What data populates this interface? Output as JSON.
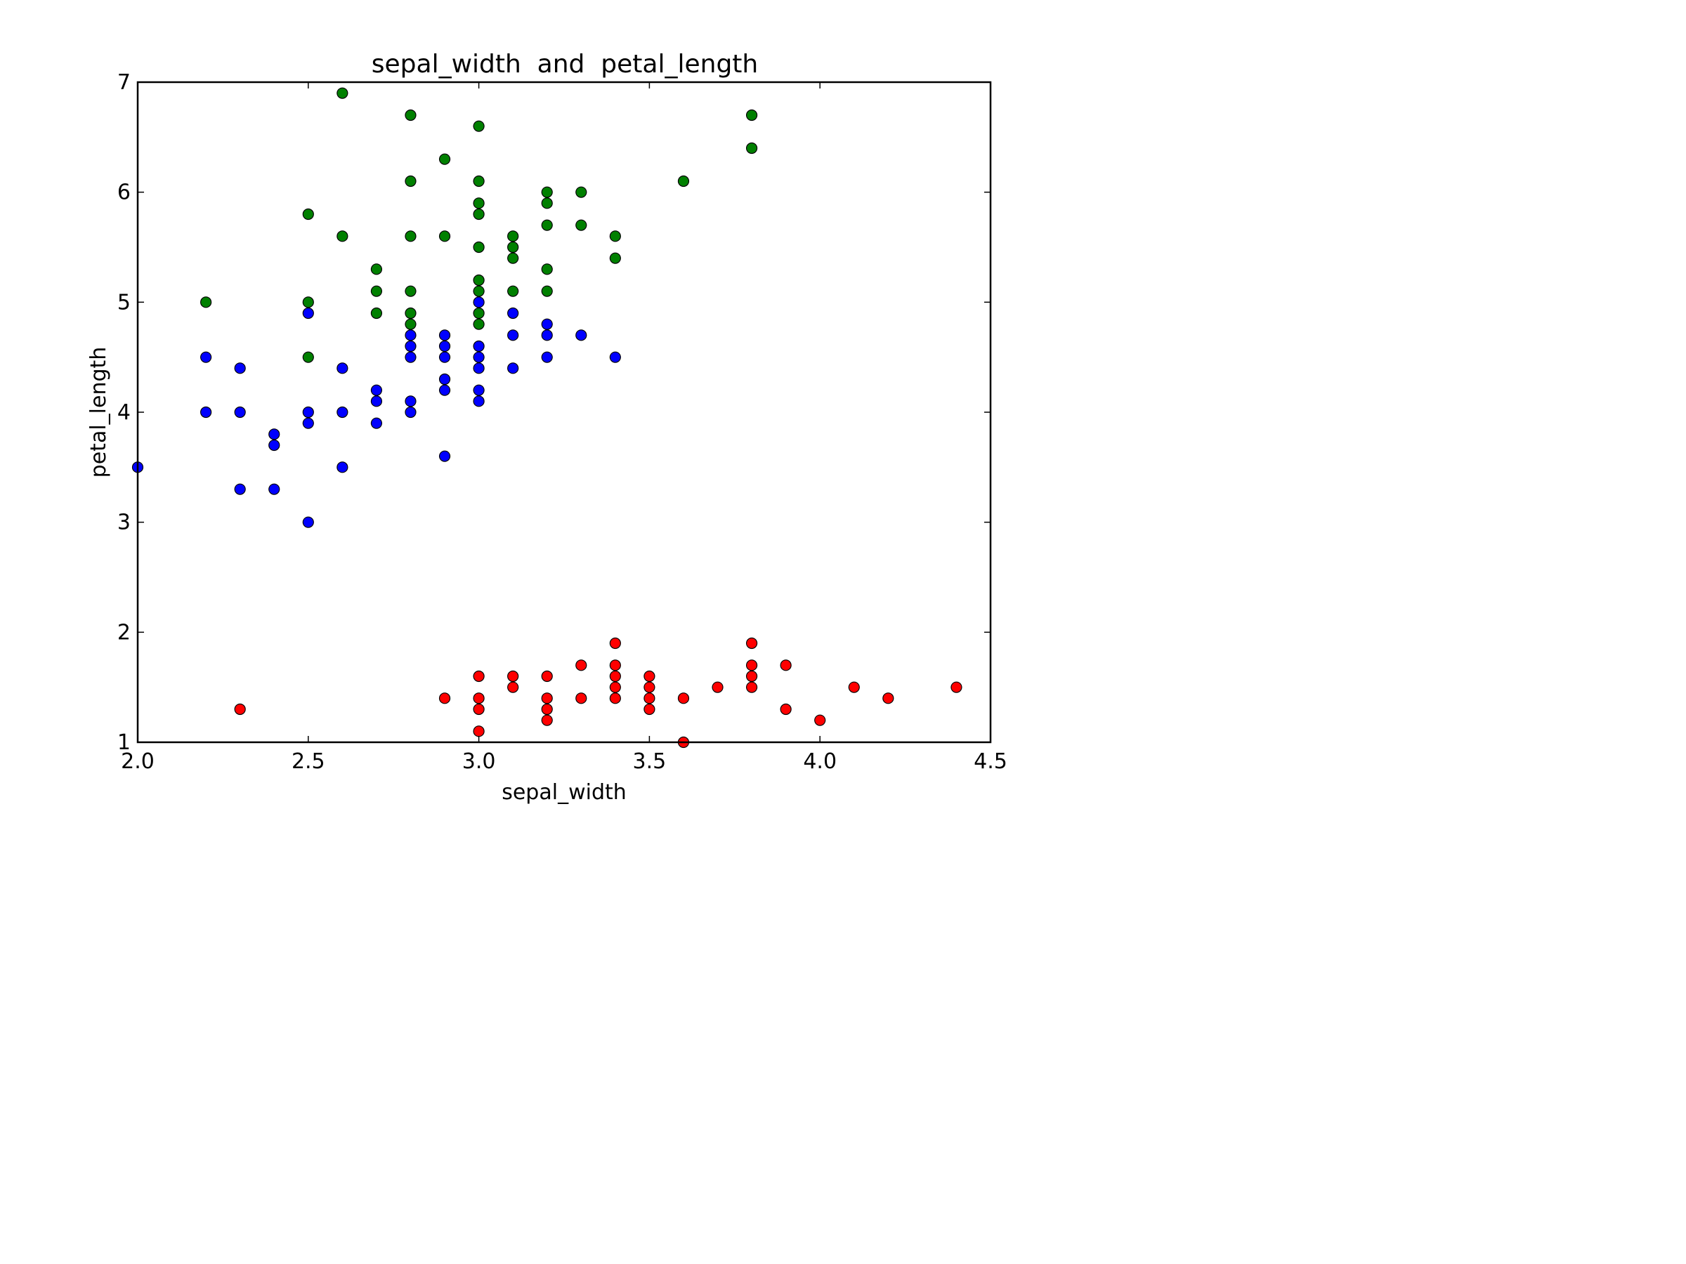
{
  "chart_data": {
    "type": "scatter",
    "title": "sepal_width  and  petal_length",
    "xlabel": "sepal_width",
    "ylabel": "petal_length",
    "xlim": [
      2.0,
      4.5
    ],
    "ylim": [
      1,
      7
    ],
    "xticks": [
      "2.0",
      "2.5",
      "3.0",
      "3.5",
      "4.0",
      "4.5"
    ],
    "yticks": [
      "1",
      "2",
      "3",
      "4",
      "5",
      "6",
      "7"
    ],
    "grid": false,
    "legend": "none",
    "series": [
      {
        "color": "#ff0000",
        "points": [
          [
            2.3,
            1.3
          ],
          [
            2.9,
            1.4
          ],
          [
            3.0,
            1.6
          ],
          [
            3.0,
            1.4
          ],
          [
            3.0,
            1.3
          ],
          [
            3.0,
            1.1
          ],
          [
            3.1,
            1.6
          ],
          [
            3.1,
            1.5
          ],
          [
            3.2,
            1.6
          ],
          [
            3.2,
            1.4
          ],
          [
            3.2,
            1.3
          ],
          [
            3.2,
            1.2
          ],
          [
            3.3,
            1.7
          ],
          [
            3.3,
            1.4
          ],
          [
            3.4,
            1.9
          ],
          [
            3.4,
            1.7
          ],
          [
            3.4,
            1.6
          ],
          [
            3.4,
            1.5
          ],
          [
            3.4,
            1.4
          ],
          [
            3.5,
            1.6
          ],
          [
            3.5,
            1.5
          ],
          [
            3.5,
            1.4
          ],
          [
            3.5,
            1.3
          ],
          [
            3.6,
            1.4
          ],
          [
            3.6,
            1.0
          ],
          [
            3.7,
            1.5
          ],
          [
            3.8,
            1.9
          ],
          [
            3.8,
            1.7
          ],
          [
            3.8,
            1.6
          ],
          [
            3.8,
            1.5
          ],
          [
            3.9,
            1.7
          ],
          [
            3.9,
            1.3
          ],
          [
            4.0,
            1.2
          ],
          [
            4.1,
            1.5
          ],
          [
            4.2,
            1.4
          ],
          [
            4.4,
            1.5
          ]
        ]
      },
      {
        "color": "#0000ff",
        "points": [
          [
            2.0,
            3.5
          ],
          [
            2.2,
            4.5
          ],
          [
            2.2,
            4.0
          ],
          [
            2.3,
            4.4
          ],
          [
            2.3,
            4.0
          ],
          [
            2.3,
            3.3
          ],
          [
            2.4,
            3.8
          ],
          [
            2.4,
            3.7
          ],
          [
            2.4,
            3.3
          ],
          [
            2.5,
            4.9
          ],
          [
            2.5,
            4.0
          ],
          [
            2.5,
            3.9
          ],
          [
            2.5,
            3.0
          ],
          [
            2.6,
            4.4
          ],
          [
            2.6,
            4.0
          ],
          [
            2.6,
            3.5
          ],
          [
            2.7,
            4.2
          ],
          [
            2.7,
            4.1
          ],
          [
            2.7,
            3.9
          ],
          [
            2.8,
            4.7
          ],
          [
            2.8,
            4.6
          ],
          [
            2.8,
            4.5
          ],
          [
            2.8,
            4.1
          ],
          [
            2.8,
            4.0
          ],
          [
            2.9,
            4.7
          ],
          [
            2.9,
            4.6
          ],
          [
            2.9,
            4.5
          ],
          [
            2.9,
            4.3
          ],
          [
            2.9,
            4.2
          ],
          [
            2.9,
            3.6
          ],
          [
            3.0,
            5.0
          ],
          [
            3.0,
            4.6
          ],
          [
            3.0,
            4.5
          ],
          [
            3.0,
            4.4
          ],
          [
            3.0,
            4.2
          ],
          [
            3.0,
            4.1
          ],
          [
            3.1,
            4.9
          ],
          [
            3.1,
            4.7
          ],
          [
            3.1,
            4.4
          ],
          [
            3.2,
            4.8
          ],
          [
            3.2,
            4.7
          ],
          [
            3.2,
            4.5
          ],
          [
            3.3,
            4.7
          ],
          [
            3.4,
            4.5
          ]
        ]
      },
      {
        "color": "#008000",
        "points": [
          [
            2.2,
            5.0
          ],
          [
            2.5,
            5.8
          ],
          [
            2.5,
            5.0
          ],
          [
            2.5,
            4.5
          ],
          [
            2.6,
            6.9
          ],
          [
            2.6,
            5.6
          ],
          [
            2.7,
            5.3
          ],
          [
            2.7,
            5.1
          ],
          [
            2.7,
            4.9
          ],
          [
            2.8,
            6.7
          ],
          [
            2.8,
            6.1
          ],
          [
            2.8,
            5.6
          ],
          [
            2.8,
            5.1
          ],
          [
            2.8,
            4.9
          ],
          [
            2.8,
            4.8
          ],
          [
            2.9,
            6.3
          ],
          [
            2.9,
            5.6
          ],
          [
            3.0,
            6.6
          ],
          [
            3.0,
            6.1
          ],
          [
            3.0,
            5.9
          ],
          [
            3.0,
            5.8
          ],
          [
            3.0,
            5.5
          ],
          [
            3.0,
            5.2
          ],
          [
            3.0,
            5.1
          ],
          [
            3.0,
            4.9
          ],
          [
            3.0,
            4.8
          ],
          [
            3.1,
            5.6
          ],
          [
            3.1,
            5.5
          ],
          [
            3.1,
            5.4
          ],
          [
            3.1,
            5.1
          ],
          [
            3.2,
            6.0
          ],
          [
            3.2,
            5.9
          ],
          [
            3.2,
            5.7
          ],
          [
            3.2,
            5.3
          ],
          [
            3.2,
            5.1
          ],
          [
            3.3,
            6.0
          ],
          [
            3.3,
            5.7
          ],
          [
            3.4,
            5.6
          ],
          [
            3.4,
            5.4
          ],
          [
            3.6,
            6.1
          ],
          [
            3.8,
            6.7
          ],
          [
            3.8,
            6.4
          ]
        ]
      }
    ]
  }
}
